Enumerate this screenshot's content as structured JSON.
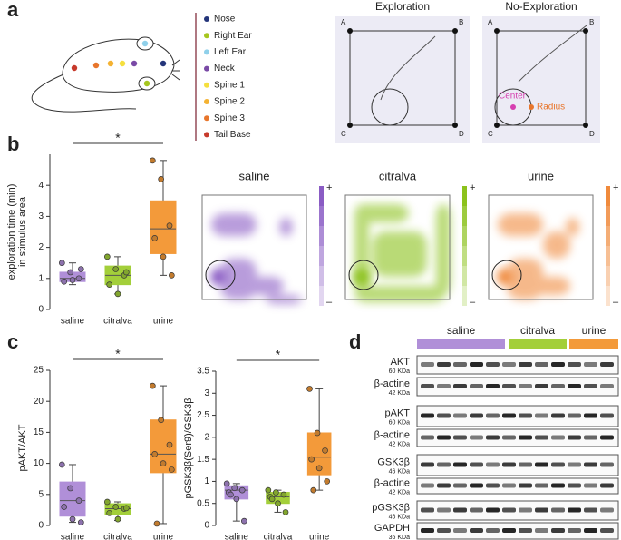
{
  "panels": [
    "a",
    "b",
    "c",
    "d"
  ],
  "legend": [
    {
      "name": "Nose",
      "color": "#24357a"
    },
    {
      "name": "Right Ear",
      "color": "#a6c61e"
    },
    {
      "name": "Left Ear",
      "color": "#8fd0ea"
    },
    {
      "name": "Neck",
      "color": "#7a4aa6"
    },
    {
      "name": "Spine 1",
      "color": "#f5df3e"
    },
    {
      "name": "Spine 2",
      "color": "#f4b232"
    },
    {
      "name": "Spine 3",
      "color": "#e8762c"
    },
    {
      "name": "Tail Base",
      "color": "#c73a2c"
    }
  ],
  "arena": {
    "titles": [
      "Exploration",
      "No-Exploration"
    ],
    "corners": [
      "A",
      "B",
      "C",
      "D"
    ],
    "center": "Center",
    "radius": "Radius"
  },
  "heatmaps": [
    {
      "title": "saline",
      "color": "#8a5cc4"
    },
    {
      "title": "citralva",
      "color": "#8cc21c"
    },
    {
      "title": "urine",
      "color": "#f08a3c"
    }
  ],
  "scale": [
    "+",
    "–"
  ],
  "chart_data": [
    {
      "type": "box",
      "ylabel": [
        "exploration time (min)",
        "in stimulus area"
      ],
      "categories": [
        "saline",
        "citralva",
        "urine"
      ],
      "colors": [
        "#b08fd8",
        "#a3cf3a",
        "#f39a3a"
      ],
      "ylim": [
        0,
        5
      ],
      "yticks": [
        0,
        1,
        2,
        3,
        4
      ],
      "significance": "*",
      "boxes": [
        {
          "min": 0.8,
          "q1": 0.9,
          "median": 1.0,
          "q3": 1.2,
          "max": 1.5,
          "points": [
            1.5,
            1.2,
            1.0,
            0.9,
            0.95,
            1.3
          ]
        },
        {
          "min": 0.5,
          "q1": 0.8,
          "median": 1.1,
          "q3": 1.4,
          "max": 1.7,
          "points": [
            1.7,
            1.3,
            1.1,
            0.8,
            0.5,
            1.2
          ]
        },
        {
          "min": 1.1,
          "q1": 1.8,
          "median": 2.6,
          "q3": 3.5,
          "max": 4.8,
          "points": [
            4.8,
            4.2,
            2.7,
            2.3,
            1.7,
            1.1
          ]
        }
      ]
    },
    {
      "type": "box",
      "ylabel": [
        "pAKT/AKT"
      ],
      "categories": [
        "saline",
        "citralva",
        "urine"
      ],
      "colors": [
        "#b08fd8",
        "#a3cf3a",
        "#f39a3a"
      ],
      "ylim": [
        0,
        25
      ],
      "yticks": [
        0,
        5,
        10,
        15,
        20,
        25
      ],
      "significance": "*",
      "boxes": [
        {
          "min": 0.5,
          "q1": 1.5,
          "median": 4,
          "q3": 7,
          "max": 9.8,
          "points": [
            9.8,
            6,
            4,
            3,
            1,
            0.5
          ]
        },
        {
          "min": 0.8,
          "q1": 1.8,
          "median": 2.7,
          "q3": 3.5,
          "max": 3.8,
          "points": [
            3.8,
            3,
            2.7,
            2,
            1,
            2.8
          ]
        },
        {
          "min": 0.3,
          "q1": 8.5,
          "median": 11.5,
          "q3": 17,
          "max": 22.5,
          "points": [
            22.5,
            17,
            13,
            11.5,
            10,
            9,
            0.3
          ]
        }
      ]
    },
    {
      "type": "box",
      "ylabel": [
        "pGSK3β(Ser9)/GSK3β"
      ],
      "categories": [
        "saline",
        "citralva",
        "urine"
      ],
      "colors": [
        "#b08fd8",
        "#a3cf3a",
        "#f39a3a"
      ],
      "ylim": [
        0,
        3.5
      ],
      "yticks": [
        0,
        0.5,
        1,
        1.5,
        2,
        2.5,
        3,
        3.5
      ],
      "significance": "*",
      "boxes": [
        {
          "min": 0.1,
          "q1": 0.6,
          "median": 0.8,
          "q3": 0.9,
          "max": 0.95,
          "points": [
            0.95,
            0.85,
            0.8,
            0.75,
            0.6,
            0.1,
            0.7
          ]
        },
        {
          "min": 0.3,
          "q1": 0.5,
          "median": 0.65,
          "q3": 0.75,
          "max": 0.8,
          "points": [
            0.8,
            0.75,
            0.7,
            0.65,
            0.5,
            0.3,
            0.6
          ]
        },
        {
          "min": 0.8,
          "q1": 1.15,
          "median": 1.55,
          "q3": 2.1,
          "max": 3.1,
          "points": [
            3.1,
            2.1,
            1.7,
            1.5,
            1.3,
            1.0,
            0.8
          ]
        }
      ]
    }
  ],
  "blot": {
    "groups": [
      {
        "name": "saline",
        "color": "#b08fd8"
      },
      {
        "name": "citralva",
        "color": "#a3cf3a"
      },
      {
        "name": "urine",
        "color": "#f39a3a"
      }
    ],
    "rows": [
      {
        "name": "AKT",
        "size": "60 KDa"
      },
      {
        "name": "β-actine",
        "size": "42 KDa"
      },
      {
        "name": "pAKT",
        "size": "60 KDa"
      },
      {
        "name": "β-actine",
        "size": "42 KDa"
      },
      {
        "name": "GSK3β",
        "size": "46 KDa"
      },
      {
        "name": "β-actine",
        "size": "42 KDa"
      },
      {
        "name": "pGSK3β",
        "size": "46 KDa"
      },
      {
        "name": "GAPDH",
        "size": "36 KDa"
      }
    ]
  }
}
